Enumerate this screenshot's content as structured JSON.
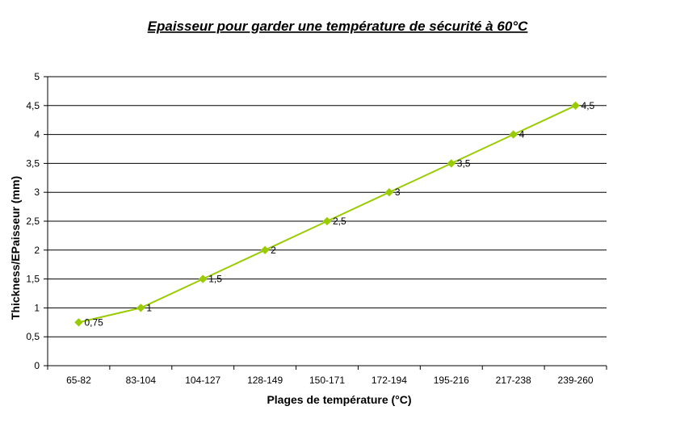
{
  "chart_data": {
    "type": "line",
    "title": "Epaisseur pour garder une température de sécurité à 60°C",
    "xlabel": "Plages de température (°C)",
    "ylabel": "Thickness/EPaisseur (mm)",
    "categories": [
      "65-82",
      "83-104",
      "104-127",
      "128-149",
      "150-171",
      "172-194",
      "195-216",
      "217-238",
      "239-260"
    ],
    "series": [
      {
        "values": [
          0.75,
          1,
          1.5,
          2,
          2.5,
          3,
          3.5,
          4,
          4.5
        ],
        "labels": [
          "0,75",
          "1",
          "1,5",
          "2",
          "2,5",
          "3",
          "3,5",
          "4",
          "4,5"
        ],
        "color": "#99cc00",
        "marker": "diamond"
      }
    ],
    "ylim": [
      0,
      5
    ],
    "yticks": [
      0,
      0.5,
      1,
      1.5,
      2,
      2.5,
      3,
      3.5,
      4,
      4.5,
      5
    ],
    "ytick_labels": [
      "0",
      "0,5",
      "1",
      "1,5",
      "2",
      "2,5",
      "3",
      "3,5",
      "4",
      "4,5",
      "5"
    ],
    "grid": "horizontal",
    "legend": "none"
  }
}
